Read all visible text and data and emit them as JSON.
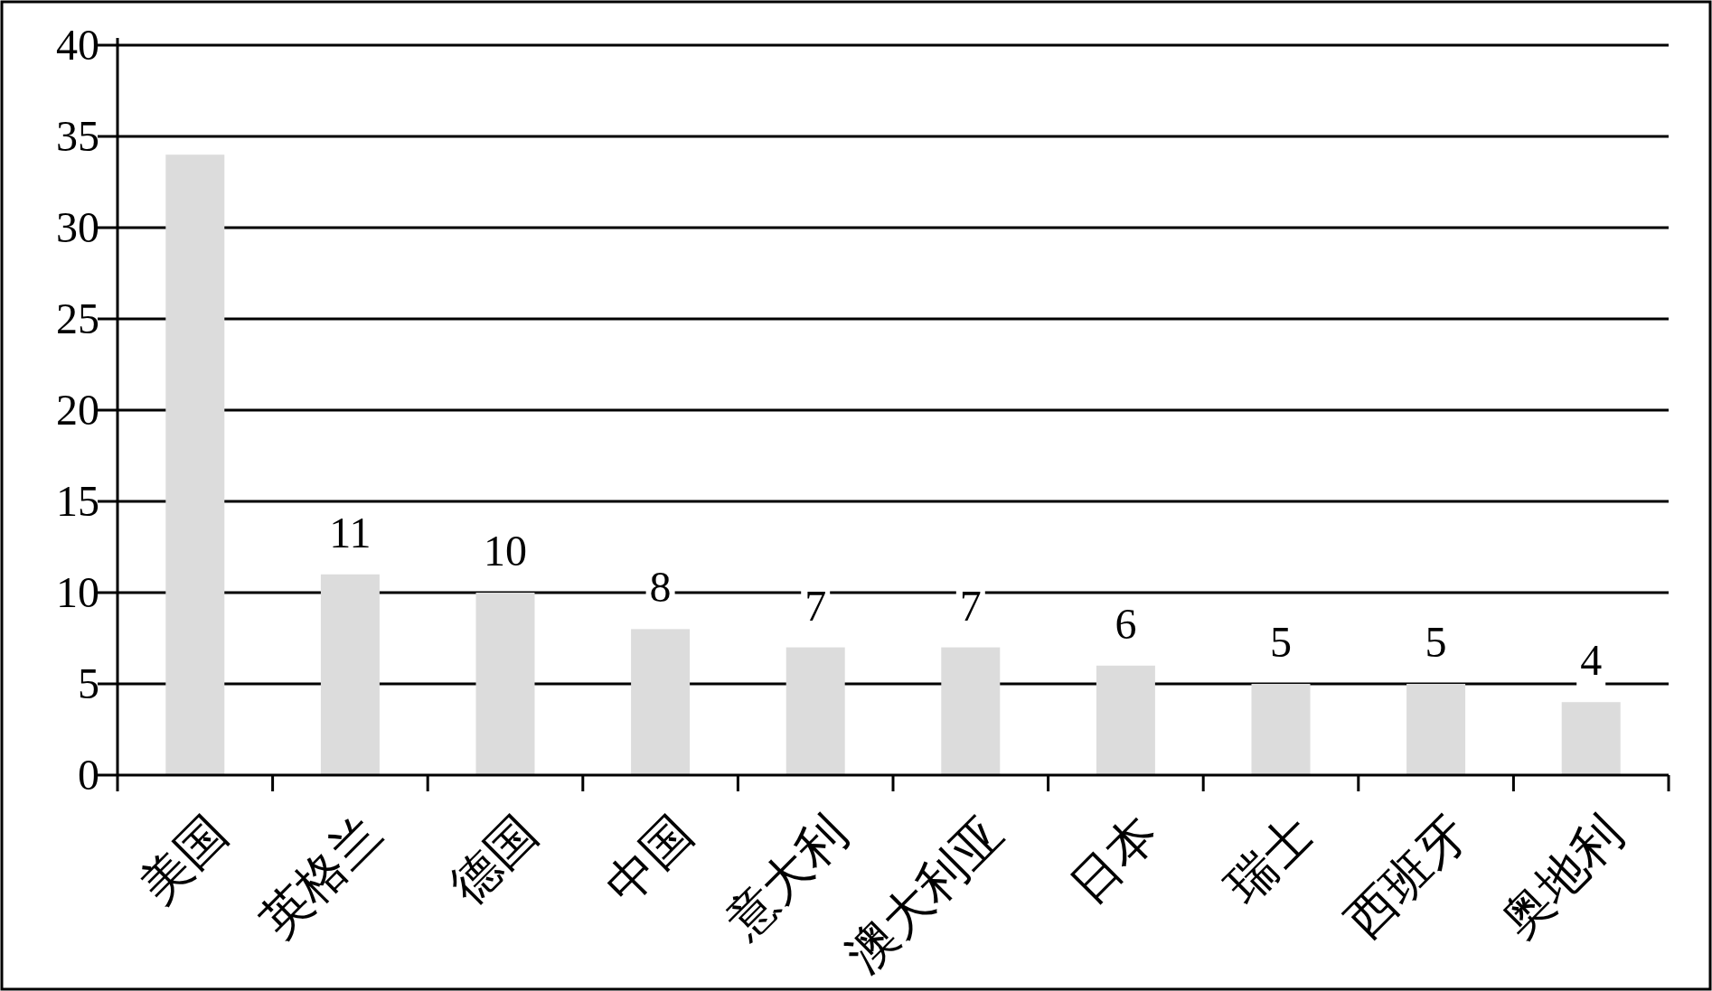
{
  "chart_data": {
    "type": "bar",
    "categories": [
      "美国",
      "英格兰",
      "德国",
      "中国",
      "意大利",
      "澳大利亚",
      "日本",
      "瑞士",
      "西班牙",
      "奥地利"
    ],
    "values": [
      34,
      11,
      10,
      8,
      7,
      7,
      6,
      5,
      5,
      4
    ],
    "value_labels": [
      null,
      "11",
      "10",
      "8",
      "7",
      "7",
      "6",
      "5",
      "5",
      "4"
    ],
    "color": "#dcdcdc",
    "ylim": [
      0,
      40
    ],
    "yticks": [
      0,
      5,
      10,
      15,
      20,
      25,
      30,
      35,
      40
    ],
    "grid": "y"
  }
}
